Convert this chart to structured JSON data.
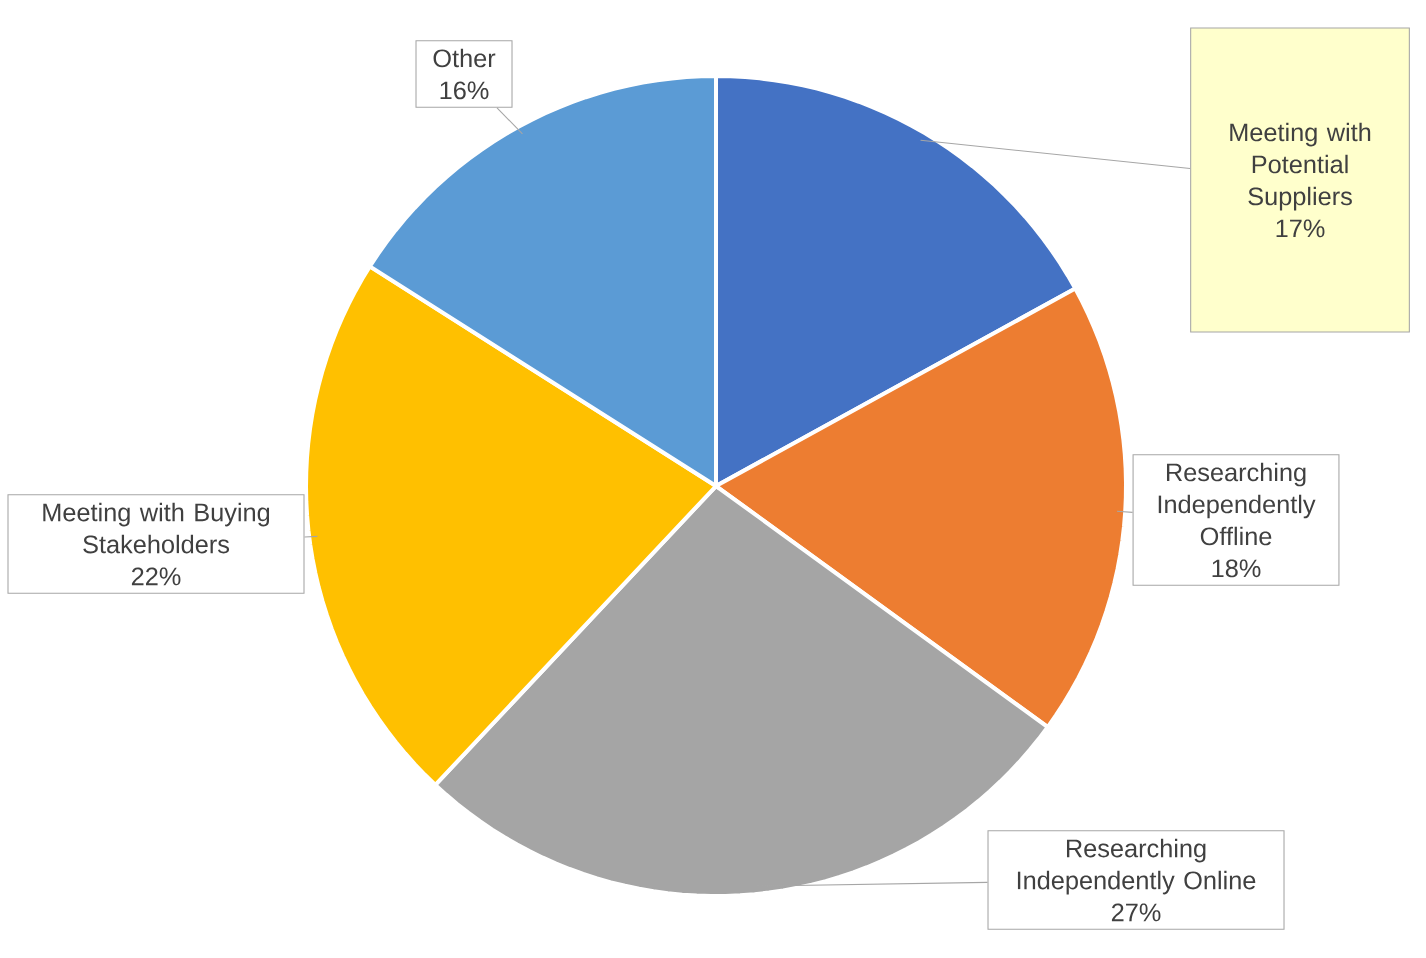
{
  "chart_data": {
    "type": "pie",
    "categories": [
      "Meeting with Potential Suppliers",
      "Researching Independently Offline",
      "Researching Independently Online",
      "Meeting with Buying Stakeholders",
      "Other"
    ],
    "values": [
      17,
      18,
      27,
      22,
      16
    ],
    "value_labels": [
      "17%",
      "18%",
      "27%",
      "22%",
      "16%"
    ],
    "colors": [
      "#4472c4",
      "#ed7d31",
      "#a5a5a5",
      "#ffc000",
      "#5b9bd5"
    ]
  }
}
